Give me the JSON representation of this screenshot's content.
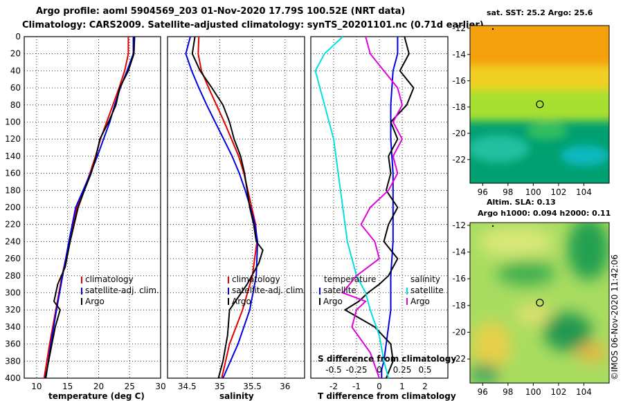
{
  "header": {
    "line1": "Argo profile: aoml 5904569_203 01-Nov-2020 17.79S 100.52E (NRT data)",
    "line2": "Climatology: CARS2009. Satellite-adjusted climatology: synTS_20201101.nc (0.71d earlier)"
  },
  "colors": {
    "climatology": "#e00000",
    "satellite": "#0000e0",
    "argo": "#000000",
    "sat_salinity": "#00e0e0",
    "argo_salinity": "#e000e0"
  },
  "chart_data": [
    {
      "type": "line",
      "title": "",
      "xlabel": "temperature (deg C)",
      "ylabel": "",
      "xlim": [
        8,
        30
      ],
      "ylim": [
        400,
        0
      ],
      "xticks": [
        "10",
        "15",
        "20",
        "25",
        "30"
      ],
      "yticks": [
        "0",
        "20",
        "40",
        "60",
        "80",
        "100",
        "120",
        "140",
        "160",
        "180",
        "200",
        "220",
        "240",
        "260",
        "280",
        "300",
        "320",
        "340",
        "360",
        "380",
        "400"
      ],
      "legend": [
        "climatology",
        "satellite-adj. clim.",
        "Argo"
      ],
      "series": [
        {
          "name": "climatology",
          "color": "#e00000",
          "x": [
            24.8,
            24.8,
            24.2,
            23.3,
            22.3,
            21.3,
            20.3,
            19.5,
            18.6,
            17.6,
            16.5,
            15.3,
            14.1,
            13.1,
            12.1,
            11.2
          ],
          "y": [
            0,
            20,
            40,
            60,
            80,
            100,
            120,
            140,
            160,
            180,
            200,
            240,
            280,
            320,
            360,
            400
          ]
        },
        {
          "name": "satellite-adj. clim.",
          "color": "#0000e0",
          "x": [
            25.6,
            25.6,
            24.6,
            23.5,
            22.6,
            21.8,
            20.8,
            19.8,
            18.7,
            17.5,
            16.3,
            15.2,
            14.2,
            13.2,
            12.3,
            11.5
          ],
          "y": [
            0,
            20,
            40,
            60,
            80,
            100,
            120,
            140,
            160,
            180,
            200,
            240,
            280,
            320,
            360,
            400
          ]
        },
        {
          "name": "Argo",
          "color": "#000000",
          "x": [
            25.8,
            25.7,
            24.8,
            23.4,
            22.8,
            21.6,
            20.2,
            19.6,
            18.8,
            17.7,
            16.7,
            15.4,
            14.6,
            13.4,
            12.8,
            13.8,
            13.0,
            12.2,
            11.4
          ],
          "y": [
            0,
            20,
            40,
            60,
            80,
            100,
            120,
            140,
            160,
            180,
            200,
            240,
            270,
            290,
            310,
            320,
            340,
            370,
            400
          ]
        }
      ]
    },
    {
      "type": "line",
      "title": "",
      "xlabel": "salinity",
      "ylabel": "",
      "xlim": [
        34.2,
        36.3
      ],
      "ylim": [
        400,
        0
      ],
      "xticks": [
        "34.5",
        "35",
        "35.5",
        "36"
      ],
      "legend": [
        "climatology",
        "satellite-adj. clim.",
        "Argo"
      ],
      "series": [
        {
          "name": "climatology",
          "color": "#e00000",
          "x": [
            34.68,
            34.67,
            34.72,
            34.83,
            34.95,
            35.07,
            35.18,
            35.29,
            35.37,
            35.43,
            35.49,
            35.55,
            35.57,
            35.5,
            35.35,
            35.15,
            35.03
          ],
          "y": [
            0,
            20,
            40,
            60,
            80,
            100,
            120,
            140,
            160,
            180,
            200,
            220,
            240,
            280,
            320,
            360,
            400
          ]
        },
        {
          "name": "satellite-adj. clim.",
          "color": "#0000e0",
          "x": [
            34.55,
            34.48,
            34.57,
            34.68,
            34.8,
            34.93,
            35.06,
            35.19,
            35.3,
            35.39,
            35.47,
            35.54,
            35.58,
            35.56,
            35.46,
            35.28,
            35.05
          ],
          "y": [
            0,
            20,
            40,
            60,
            80,
            100,
            120,
            140,
            160,
            180,
            200,
            220,
            240,
            280,
            320,
            360,
            400
          ]
        },
        {
          "name": "Argo",
          "color": "#000000",
          "x": [
            34.62,
            34.58,
            34.7,
            34.88,
            35.05,
            35.15,
            35.22,
            35.32,
            35.38,
            35.42,
            35.46,
            35.52,
            35.56,
            35.66,
            35.6,
            35.42,
            35.15,
            35.12,
            35.05,
            34.98
          ],
          "y": [
            0,
            20,
            40,
            60,
            80,
            100,
            120,
            140,
            160,
            180,
            200,
            220,
            240,
            250,
            265,
            290,
            320,
            350,
            380,
            400
          ]
        }
      ]
    },
    {
      "type": "line",
      "title": "",
      "xlabel": "T difference from climatology",
      "ylabel": "",
      "xlim": [
        -3,
        3
      ],
      "ylim": [
        400,
        0
      ],
      "xticks": [
        "-2",
        "-1",
        "0",
        "1",
        "2"
      ],
      "secondary_xlabel": "S difference from climatology",
      "secondary_xticks": [
        "-0.5",
        "-0.25",
        "0",
        "0.25",
        "0.5"
      ],
      "legend_left_title": "temperature",
      "legend_right_title": "salinity",
      "legend": [
        "satellite",
        "Argo",
        "satellite",
        "Argo"
      ],
      "series": [
        {
          "name": "satellite (temperature)",
          "color": "#0000e0",
          "x": [
            0.8,
            0.8,
            0.6,
            0.5,
            0.5,
            0.6,
            0.6,
            0.6,
            0.5,
            0.5,
            0.5,
            0.4,
            0.3,
            0.2,
            0.1,
            0.1
          ],
          "y": [
            0,
            20,
            40,
            80,
            120,
            160,
            200,
            240,
            280,
            300,
            320,
            340,
            360,
            380,
            390,
            400
          ]
        },
        {
          "name": "Argo (temperature)",
          "color": "#000000",
          "x": [
            1.1,
            1.3,
            0.9,
            1.5,
            1.2,
            0.5,
            0.8,
            0.4,
            0.5,
            0.3,
            0.8,
            0.4,
            0.2,
            0.8,
            0.4,
            0.0,
            -0.5,
            -0.9,
            -1.5,
            -0.2,
            0.5,
            0.6,
            0.3
          ],
          "y": [
            0,
            20,
            40,
            60,
            80,
            100,
            120,
            140,
            160,
            180,
            200,
            220,
            240,
            260,
            280,
            290,
            300,
            310,
            320,
            340,
            360,
            380,
            400
          ]
        },
        {
          "name": "satellite (salinity)",
          "color": "#00e0e0",
          "x": [
            -0.4,
            -0.6,
            -0.7,
            -0.6,
            -0.5,
            -0.45,
            -0.4,
            -0.35,
            -0.3,
            -0.25,
            -0.15,
            -0.1,
            0.0,
            0.05,
            0.1
          ],
          "y": [
            0,
            20,
            40,
            80,
            120,
            160,
            200,
            240,
            260,
            280,
            300,
            320,
            350,
            380,
            400
          ]
        },
        {
          "name": "Argo (salinity)",
          "color": "#e000e0",
          "x": [
            -0.15,
            -0.1,
            0.05,
            0.2,
            0.25,
            0.15,
            0.25,
            0.15,
            0.2,
            0.1,
            -0.1,
            -0.2,
            -0.05,
            0.0,
            -0.25,
            -0.4,
            -0.15,
            -0.25,
            -0.3,
            -0.1,
            0.0
          ],
          "y": [
            0,
            20,
            40,
            60,
            80,
            100,
            120,
            140,
            160,
            180,
            200,
            220,
            240,
            260,
            280,
            300,
            310,
            320,
            340,
            370,
            400
          ]
        }
      ]
    },
    {
      "type": "heatmap",
      "title": "sat. SST: 25.2 Argo: 25.6",
      "xticks": [
        "96",
        "98",
        "100",
        "102",
        "104"
      ],
      "yticks": [
        "-12",
        "-14",
        "-16",
        "-18",
        "-20",
        "-22"
      ],
      "xlim": [
        95.0,
        106.0
      ],
      "ylim": [
        -23.8,
        -11.8
      ],
      "marker": {
        "lon": 100.52,
        "lat": -17.79
      }
    },
    {
      "type": "heatmap",
      "title": "Altim. SLA: 0.13",
      "subtitle": "Argo h1000: 0.094 h2000: 0.11",
      "xticks": [
        "96",
        "98",
        "100",
        "102",
        "104"
      ],
      "yticks": [
        "-12",
        "-14",
        "-16",
        "-18",
        "-20",
        "-22"
      ],
      "xlim": [
        95.0,
        106.0
      ],
      "ylim": [
        -23.8,
        -11.8
      ],
      "marker": {
        "lon": 100.52,
        "lat": -17.79
      }
    }
  ],
  "credit": "©IMOS 06-Nov-2020 11:42:06"
}
